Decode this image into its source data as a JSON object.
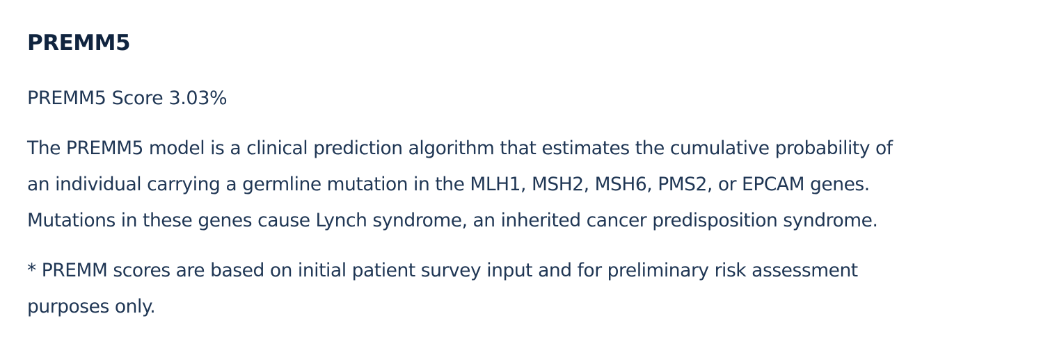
{
  "section": {
    "title": "PREMM5",
    "score_text": "PREMM5 Score 3.03%",
    "description_lines": [
      "The PREMM5 model is a clinical prediction algorithm that estimates the cumulative probability of",
      "an individual carrying a germline mutation in the MLH1, MSH2, MSH6, PMS2, or EPCAM genes.",
      "Mutations in these genes cause Lynch syndrome, an inherited cancer predisposition syndrome."
    ],
    "note_lines": [
      "* PREMM scores are based on initial patient survey input and for preliminary risk assessment",
      "purposes only."
    ]
  },
  "colors": {
    "title": "#10243f",
    "body_text": "#1f3654",
    "background": "#ffffff"
  }
}
